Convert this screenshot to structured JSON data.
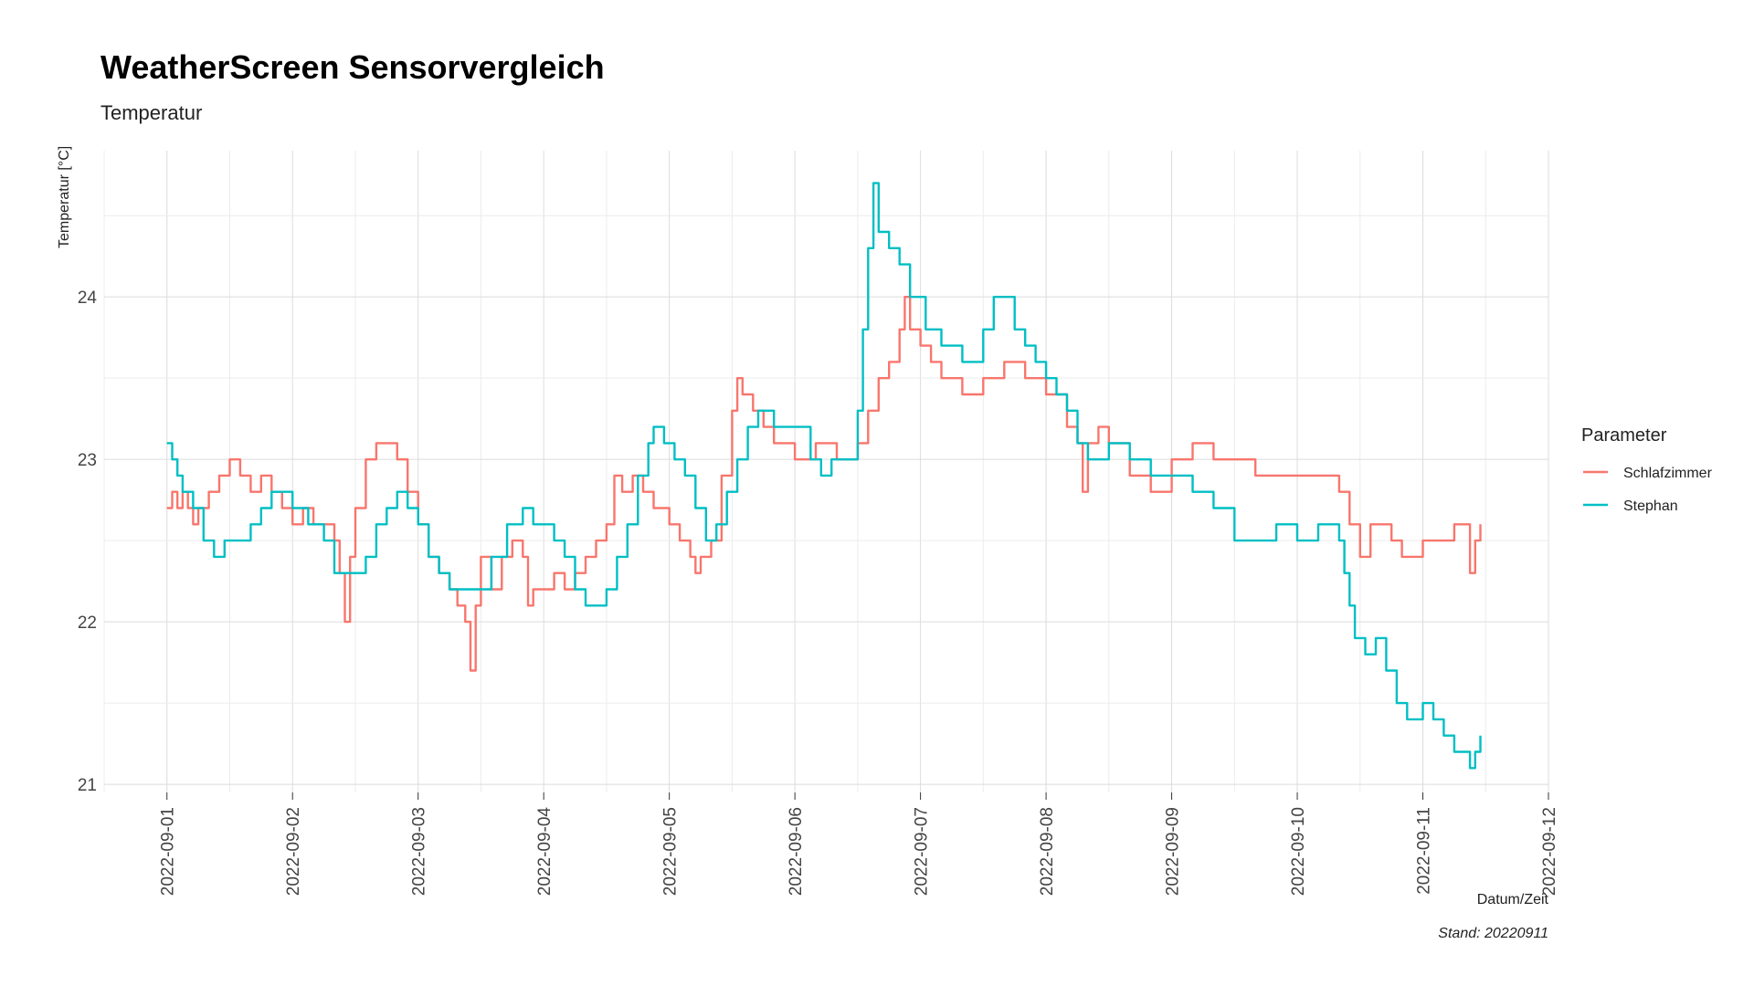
{
  "chart_data": {
    "type": "line",
    "title": "WeatherScreen Sensorvergleich",
    "subtitle": "Temperatur",
    "xlabel": "Datum/Zeit",
    "ylabel": "Temperatur [°C]",
    "caption": "Stand: 20220911",
    "legend_title": "Parameter",
    "legend_position": "right",
    "grid": true,
    "x_type": "datetime",
    "xlim": [
      "2022-08-31 12:00",
      "2022-09-12 00:00"
    ],
    "ylim": [
      20.95,
      24.9
    ],
    "x_ticks": [
      "2022-09-01",
      "2022-09-02",
      "2022-09-03",
      "2022-09-04",
      "2022-09-05",
      "2022-09-06",
      "2022-09-07",
      "2022-09-08",
      "2022-09-09",
      "2022-09-10",
      "2022-09-11",
      "2022-09-12"
    ],
    "y_ticks": [
      21,
      22,
      23,
      24
    ],
    "series": [
      {
        "name": "Schlafzimmer",
        "color": "#F8766D",
        "points": [
          [
            "2022-09-01 00:00",
            22.7
          ],
          [
            "2022-09-01 01:00",
            22.8
          ],
          [
            "2022-09-01 02:00",
            22.7
          ],
          [
            "2022-09-01 03:00",
            22.8
          ],
          [
            "2022-09-01 04:00",
            22.7
          ],
          [
            "2022-09-01 05:00",
            22.6
          ],
          [
            "2022-09-01 06:00",
            22.7
          ],
          [
            "2022-09-01 08:00",
            22.8
          ],
          [
            "2022-09-01 10:00",
            22.9
          ],
          [
            "2022-09-01 12:00",
            23.0
          ],
          [
            "2022-09-01 14:00",
            22.9
          ],
          [
            "2022-09-01 16:00",
            22.8
          ],
          [
            "2022-09-01 18:00",
            22.9
          ],
          [
            "2022-09-01 20:00",
            22.8
          ],
          [
            "2022-09-01 22:00",
            22.7
          ],
          [
            "2022-09-02 00:00",
            22.6
          ],
          [
            "2022-09-02 02:00",
            22.7
          ],
          [
            "2022-09-02 04:00",
            22.6
          ],
          [
            "2022-09-02 06:00",
            22.6
          ],
          [
            "2022-09-02 08:00",
            22.5
          ],
          [
            "2022-09-02 09:00",
            22.3
          ],
          [
            "2022-09-02 10:00",
            22.0
          ],
          [
            "2022-09-02 11:00",
            22.4
          ],
          [
            "2022-09-02 12:00",
            22.7
          ],
          [
            "2022-09-02 14:00",
            23.0
          ],
          [
            "2022-09-02 16:00",
            23.1
          ],
          [
            "2022-09-02 18:00",
            23.1
          ],
          [
            "2022-09-02 20:00",
            23.0
          ],
          [
            "2022-09-02 22:00",
            22.8
          ],
          [
            "2022-09-03 00:00",
            22.6
          ],
          [
            "2022-09-03 02:00",
            22.4
          ],
          [
            "2022-09-03 04:00",
            22.3
          ],
          [
            "2022-09-03 06:00",
            22.2
          ],
          [
            "2022-09-03 07:30",
            22.1
          ],
          [
            "2022-09-03 09:00",
            22.0
          ],
          [
            "2022-09-03 10:00",
            21.7
          ],
          [
            "2022-09-03 11:00",
            22.1
          ],
          [
            "2022-09-03 12:00",
            22.4
          ],
          [
            "2022-09-03 14:00",
            22.2
          ],
          [
            "2022-09-03 16:00",
            22.4
          ],
          [
            "2022-09-03 18:00",
            22.5
          ],
          [
            "2022-09-03 20:00",
            22.4
          ],
          [
            "2022-09-03 21:00",
            22.1
          ],
          [
            "2022-09-03 22:00",
            22.2
          ],
          [
            "2022-09-04 00:00",
            22.2
          ],
          [
            "2022-09-04 02:00",
            22.3
          ],
          [
            "2022-09-04 04:00",
            22.2
          ],
          [
            "2022-09-04 06:00",
            22.3
          ],
          [
            "2022-09-04 08:00",
            22.4
          ],
          [
            "2022-09-04 10:00",
            22.5
          ],
          [
            "2022-09-04 12:00",
            22.6
          ],
          [
            "2022-09-04 13:30",
            22.9
          ],
          [
            "2022-09-04 15:00",
            22.8
          ],
          [
            "2022-09-04 17:00",
            22.9
          ],
          [
            "2022-09-04 19:00",
            22.8
          ],
          [
            "2022-09-04 21:00",
            22.7
          ],
          [
            "2022-09-05 00:00",
            22.6
          ],
          [
            "2022-09-05 02:00",
            22.5
          ],
          [
            "2022-09-05 04:00",
            22.4
          ],
          [
            "2022-09-05 05:00",
            22.3
          ],
          [
            "2022-09-05 06:00",
            22.4
          ],
          [
            "2022-09-05 08:00",
            22.5
          ],
          [
            "2022-09-05 10:00",
            22.9
          ],
          [
            "2022-09-05 12:00",
            23.3
          ],
          [
            "2022-09-05 13:00",
            23.5
          ],
          [
            "2022-09-05 14:00",
            23.4
          ],
          [
            "2022-09-05 16:00",
            23.3
          ],
          [
            "2022-09-05 18:00",
            23.2
          ],
          [
            "2022-09-05 20:00",
            23.1
          ],
          [
            "2022-09-06 00:00",
            23.0
          ],
          [
            "2022-09-06 04:00",
            23.1
          ],
          [
            "2022-09-06 08:00",
            23.0
          ],
          [
            "2022-09-06 12:00",
            23.1
          ],
          [
            "2022-09-06 14:00",
            23.3
          ],
          [
            "2022-09-06 16:00",
            23.5
          ],
          [
            "2022-09-06 18:00",
            23.6
          ],
          [
            "2022-09-06 20:00",
            23.8
          ],
          [
            "2022-09-06 21:00",
            24.0
          ],
          [
            "2022-09-06 22:00",
            23.8
          ],
          [
            "2022-09-07 00:00",
            23.7
          ],
          [
            "2022-09-07 02:00",
            23.6
          ],
          [
            "2022-09-07 04:00",
            23.5
          ],
          [
            "2022-09-07 08:00",
            23.4
          ],
          [
            "2022-09-07 12:00",
            23.5
          ],
          [
            "2022-09-07 16:00",
            23.6
          ],
          [
            "2022-09-07 20:00",
            23.5
          ],
          [
            "2022-09-08 00:00",
            23.4
          ],
          [
            "2022-09-08 04:00",
            23.2
          ],
          [
            "2022-09-08 06:00",
            23.1
          ],
          [
            "2022-09-08 07:00",
            22.8
          ],
          [
            "2022-09-08 08:00",
            23.1
          ],
          [
            "2022-09-08 10:00",
            23.2
          ],
          [
            "2022-09-08 12:00",
            23.1
          ],
          [
            "2022-09-08 16:00",
            22.9
          ],
          [
            "2022-09-08 20:00",
            22.8
          ],
          [
            "2022-09-09 00:00",
            23.0
          ],
          [
            "2022-09-09 04:00",
            23.1
          ],
          [
            "2022-09-09 08:00",
            23.0
          ],
          [
            "2022-09-09 12:00",
            23.0
          ],
          [
            "2022-09-09 16:00",
            22.9
          ],
          [
            "2022-09-09 20:00",
            22.9
          ],
          [
            "2022-09-10 00:00",
            22.9
          ],
          [
            "2022-09-10 04:00",
            22.9
          ],
          [
            "2022-09-10 08:00",
            22.8
          ],
          [
            "2022-09-10 10:00",
            22.6
          ],
          [
            "2022-09-10 12:00",
            22.4
          ],
          [
            "2022-09-10 14:00",
            22.6
          ],
          [
            "2022-09-10 16:00",
            22.6
          ],
          [
            "2022-09-10 18:00",
            22.5
          ],
          [
            "2022-09-10 20:00",
            22.4
          ],
          [
            "2022-09-11 00:00",
            22.5
          ],
          [
            "2022-09-11 04:00",
            22.5
          ],
          [
            "2022-09-11 06:00",
            22.6
          ],
          [
            "2022-09-11 08:00",
            22.6
          ],
          [
            "2022-09-11 09:00",
            22.3
          ],
          [
            "2022-09-11 10:00",
            22.5
          ],
          [
            "2022-09-11 11:00",
            22.6
          ]
        ]
      },
      {
        "name": "Stephan",
        "color": "#00BFC4",
        "points": [
          [
            "2022-09-01 00:00",
            23.1
          ],
          [
            "2022-09-01 01:00",
            23.0
          ],
          [
            "2022-09-01 02:00",
            22.9
          ],
          [
            "2022-09-01 03:00",
            22.8
          ],
          [
            "2022-09-01 05:00",
            22.7
          ],
          [
            "2022-09-01 07:00",
            22.5
          ],
          [
            "2022-09-01 09:00",
            22.4
          ],
          [
            "2022-09-01 11:00",
            22.5
          ],
          [
            "2022-09-01 14:00",
            22.5
          ],
          [
            "2022-09-01 16:00",
            22.6
          ],
          [
            "2022-09-01 18:00",
            22.7
          ],
          [
            "2022-09-01 20:00",
            22.8
          ],
          [
            "2022-09-02 00:00",
            22.7
          ],
          [
            "2022-09-02 03:00",
            22.6
          ],
          [
            "2022-09-02 06:00",
            22.5
          ],
          [
            "2022-09-02 08:00",
            22.3
          ],
          [
            "2022-09-02 10:00",
            22.3
          ],
          [
            "2022-09-02 12:00",
            22.3
          ],
          [
            "2022-09-02 14:00",
            22.4
          ],
          [
            "2022-09-02 16:00",
            22.6
          ],
          [
            "2022-09-02 18:00",
            22.7
          ],
          [
            "2022-09-02 20:00",
            22.8
          ],
          [
            "2022-09-02 22:00",
            22.7
          ],
          [
            "2022-09-03 00:00",
            22.6
          ],
          [
            "2022-09-03 02:00",
            22.4
          ],
          [
            "2022-09-03 04:00",
            22.3
          ],
          [
            "2022-09-03 06:00",
            22.2
          ],
          [
            "2022-09-03 09:00",
            22.2
          ],
          [
            "2022-09-03 12:00",
            22.2
          ],
          [
            "2022-09-03 14:00",
            22.4
          ],
          [
            "2022-09-03 17:00",
            22.6
          ],
          [
            "2022-09-03 20:00",
            22.7
          ],
          [
            "2022-09-03 22:00",
            22.6
          ],
          [
            "2022-09-04 00:00",
            22.6
          ],
          [
            "2022-09-04 02:00",
            22.5
          ],
          [
            "2022-09-04 04:00",
            22.4
          ],
          [
            "2022-09-04 06:00",
            22.2
          ],
          [
            "2022-09-04 08:00",
            22.1
          ],
          [
            "2022-09-04 11:00",
            22.1
          ],
          [
            "2022-09-04 12:00",
            22.2
          ],
          [
            "2022-09-04 14:00",
            22.4
          ],
          [
            "2022-09-04 16:00",
            22.6
          ],
          [
            "2022-09-04 18:00",
            22.9
          ],
          [
            "2022-09-04 20:00",
            23.1
          ],
          [
            "2022-09-04 21:00",
            23.2
          ],
          [
            "2022-09-04 23:00",
            23.1
          ],
          [
            "2022-09-05 01:00",
            23.0
          ],
          [
            "2022-09-05 03:00",
            22.9
          ],
          [
            "2022-09-05 05:00",
            22.7
          ],
          [
            "2022-09-05 07:00",
            22.5
          ],
          [
            "2022-09-05 09:00",
            22.6
          ],
          [
            "2022-09-05 11:00",
            22.8
          ],
          [
            "2022-09-05 13:00",
            23.0
          ],
          [
            "2022-09-05 15:00",
            23.2
          ],
          [
            "2022-09-05 17:00",
            23.3
          ],
          [
            "2022-09-05 20:00",
            23.2
          ],
          [
            "2022-09-06 00:00",
            23.2
          ],
          [
            "2022-09-06 03:00",
            23.0
          ],
          [
            "2022-09-06 05:00",
            22.9
          ],
          [
            "2022-09-06 07:00",
            23.0
          ],
          [
            "2022-09-06 10:00",
            23.0
          ],
          [
            "2022-09-06 12:00",
            23.3
          ],
          [
            "2022-09-06 13:00",
            23.8
          ],
          [
            "2022-09-06 14:00",
            24.3
          ],
          [
            "2022-09-06 15:00",
            24.7
          ],
          [
            "2022-09-06 16:00",
            24.4
          ],
          [
            "2022-09-06 18:00",
            24.3
          ],
          [
            "2022-09-06 20:00",
            24.2
          ],
          [
            "2022-09-06 22:00",
            24.0
          ],
          [
            "2022-09-07 01:00",
            23.8
          ],
          [
            "2022-09-07 04:00",
            23.7
          ],
          [
            "2022-09-07 08:00",
            23.6
          ],
          [
            "2022-09-07 12:00",
            23.8
          ],
          [
            "2022-09-07 14:00",
            24.0
          ],
          [
            "2022-09-07 16:00",
            24.0
          ],
          [
            "2022-09-07 18:00",
            23.8
          ],
          [
            "2022-09-07 20:00",
            23.7
          ],
          [
            "2022-09-07 22:00",
            23.6
          ],
          [
            "2022-09-08 00:00",
            23.5
          ],
          [
            "2022-09-08 02:00",
            23.4
          ],
          [
            "2022-09-08 04:00",
            23.3
          ],
          [
            "2022-09-08 06:00",
            23.1
          ],
          [
            "2022-09-08 08:00",
            23.0
          ],
          [
            "2022-09-08 10:00",
            23.0
          ],
          [
            "2022-09-08 12:00",
            23.1
          ],
          [
            "2022-09-08 16:00",
            23.0
          ],
          [
            "2022-09-08 20:00",
            22.9
          ],
          [
            "2022-09-09 00:00",
            22.9
          ],
          [
            "2022-09-09 04:00",
            22.8
          ],
          [
            "2022-09-09 08:00",
            22.7
          ],
          [
            "2022-09-09 12:00",
            22.5
          ],
          [
            "2022-09-09 16:00",
            22.5
          ],
          [
            "2022-09-09 20:00",
            22.6
          ],
          [
            "2022-09-10 00:00",
            22.5
          ],
          [
            "2022-09-10 04:00",
            22.6
          ],
          [
            "2022-09-10 08:00",
            22.5
          ],
          [
            "2022-09-10 09:00",
            22.3
          ],
          [
            "2022-09-10 10:00",
            22.1
          ],
          [
            "2022-09-10 11:00",
            21.9
          ],
          [
            "2022-09-10 13:00",
            21.8
          ],
          [
            "2022-09-10 15:00",
            21.9
          ],
          [
            "2022-09-10 17:00",
            21.7
          ],
          [
            "2022-09-10 19:00",
            21.5
          ],
          [
            "2022-09-10 21:00",
            21.4
          ],
          [
            "2022-09-11 00:00",
            21.5
          ],
          [
            "2022-09-11 02:00",
            21.4
          ],
          [
            "2022-09-11 04:00",
            21.3
          ],
          [
            "2022-09-11 06:00",
            21.2
          ],
          [
            "2022-09-11 08:00",
            21.2
          ],
          [
            "2022-09-11 09:00",
            21.1
          ],
          [
            "2022-09-11 10:00",
            21.2
          ],
          [
            "2022-09-11 11:00",
            21.3
          ]
        ]
      }
    ]
  }
}
